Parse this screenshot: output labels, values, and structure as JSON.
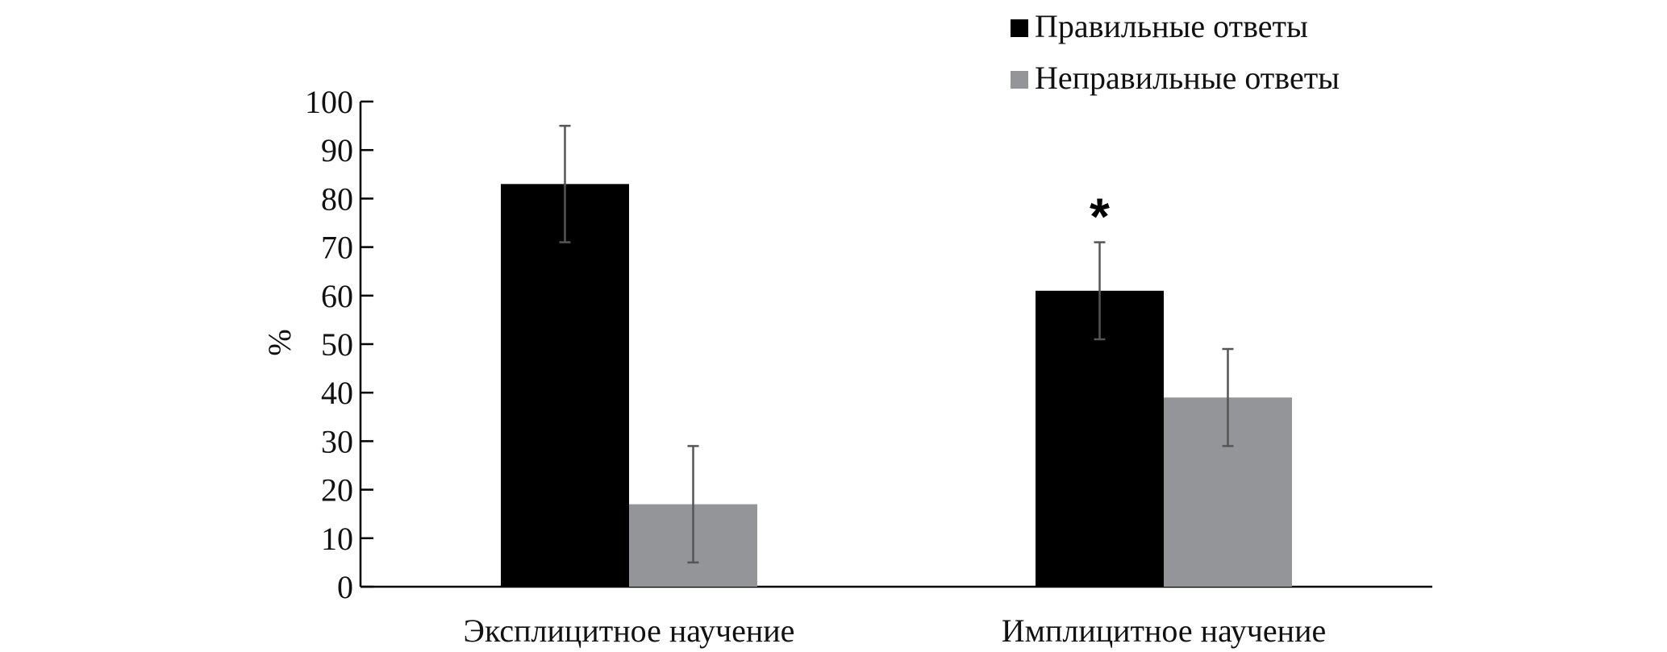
{
  "chart_data": {
    "type": "bar",
    "title": "",
    "xlabel": "",
    "ylabel": "%",
    "ylim": [
      0,
      100
    ],
    "yticks": [
      0,
      10,
      20,
      30,
      40,
      50,
      60,
      70,
      80,
      90,
      100
    ],
    "grid": false,
    "legend_position": "top-right",
    "categories": [
      "Эксплицитное научение",
      "Имплицитное научение"
    ],
    "series": [
      {
        "name": "Правильные ответы",
        "color": "#000000",
        "values": [
          83,
          61
        ],
        "error": [
          12,
          10
        ]
      },
      {
        "name": "Неправильные ответы",
        "color": "#939598",
        "values": [
          17,
          39
        ],
        "error": [
          12,
          10
        ]
      }
    ],
    "annotations": [
      {
        "text": "*",
        "category_index": 1,
        "series_index": 0
      }
    ]
  }
}
